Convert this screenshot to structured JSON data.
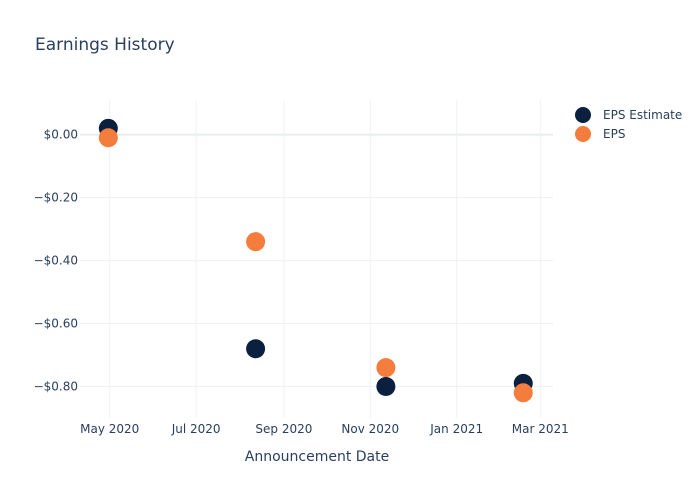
{
  "chart_data": {
    "type": "scatter",
    "title": "Earnings History",
    "xlabel": "Announcement Date",
    "ylabel": "",
    "x_range": [
      "2020-04-10",
      "2021-03-10"
    ],
    "ylim": [
      -0.9,
      0.11
    ],
    "grid": true,
    "legend_position": "top-right",
    "x_ticks": [
      {
        "date": "2020-05-01",
        "label": "May 2020"
      },
      {
        "date": "2020-07-01",
        "label": "Jul 2020"
      },
      {
        "date": "2020-09-01",
        "label": "Sep 2020"
      },
      {
        "date": "2020-11-01",
        "label": "Nov 2020"
      },
      {
        "date": "2021-01-01",
        "label": "Jan 2021"
      },
      {
        "date": "2021-03-01",
        "label": "Mar 2021"
      }
    ],
    "y_ticks": [
      {
        "value": 0.0,
        "label": "$0.00"
      },
      {
        "value": -0.2,
        "label": "−$0.20"
      },
      {
        "value": -0.4,
        "label": "−$0.40"
      },
      {
        "value": -0.6,
        "label": "−$0.60"
      },
      {
        "value": -0.8,
        "label": "−$0.80"
      }
    ],
    "series": [
      {
        "name": "EPS Estimate",
        "color": "#0b1f3f",
        "points": [
          {
            "x": "2020-04-30",
            "y": 0.02
          },
          {
            "x": "2020-08-12",
            "y": -0.68
          },
          {
            "x": "2020-11-12",
            "y": -0.8
          },
          {
            "x": "2021-02-17",
            "y": -0.79
          }
        ]
      },
      {
        "name": "EPS",
        "color": "#f47c3c",
        "points": [
          {
            "x": "2020-04-30",
            "y": -0.01
          },
          {
            "x": "2020-08-12",
            "y": -0.34
          },
          {
            "x": "2020-11-12",
            "y": -0.74
          },
          {
            "x": "2021-02-17",
            "y": -0.82
          }
        ]
      }
    ]
  }
}
